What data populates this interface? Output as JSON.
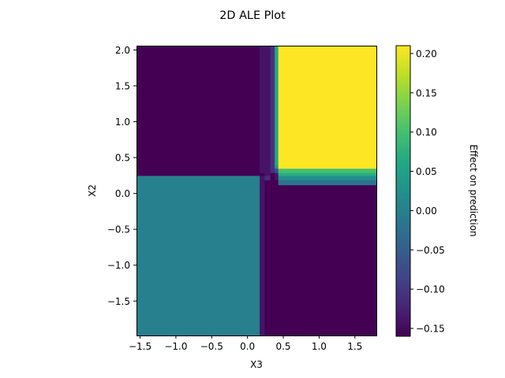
{
  "chart_data": {
    "type": "heatmap",
    "title": "2D ALE Plot",
    "xlabel": "X3",
    "ylabel": "X2",
    "colorbar_label": "Effect on prediction",
    "colormap": "viridis",
    "xlim": [
      -1.55,
      1.8
    ],
    "ylim": [
      -1.98,
      2.06
    ],
    "clim": [
      -0.16,
      0.21
    ],
    "x_ticks": [
      -1.5,
      -1.0,
      -0.5,
      0.0,
      0.5,
      1.0,
      1.5
    ],
    "x_tick_labels": [
      "−1.5",
      "−1.0",
      "−0.5",
      "0.0",
      "0.5",
      "1.0",
      "1.5"
    ],
    "y_ticks": [
      -1.5,
      -1.0,
      -0.5,
      0.0,
      0.5,
      1.0,
      1.5,
      2.0
    ],
    "y_tick_labels": [
      "−1.5",
      "−1.0",
      "−0.5",
      "0.0",
      "0.5",
      "1.0",
      "1.5",
      "2.0"
    ],
    "cbar_ticks": [
      -0.15,
      -0.1,
      -0.05,
      0.0,
      0.05,
      0.1,
      0.15,
      0.2
    ],
    "cbar_tick_labels": [
      "−0.15",
      "−0.10",
      "−0.05",
      "0.00",
      "0.05",
      "0.10",
      "0.15",
      "0.20"
    ],
    "x_edges": [
      -1.55,
      0.17,
      0.24,
      0.32,
      0.38,
      0.43,
      1.8
    ],
    "y_edges": [
      -1.98,
      0.12,
      0.19,
      0.25,
      0.29,
      0.35,
      0.39,
      2.06
    ],
    "values": [
      [
        0.0,
        -0.14,
        -0.16,
        -0.16,
        -0.16,
        -0.16
      ],
      [
        0.0,
        -0.14,
        -0.16,
        -0.16,
        -0.16,
        -0.02
      ],
      [
        0.0,
        -0.14,
        -0.11,
        -0.16,
        -0.14,
        0.02
      ],
      [
        -0.16,
        -0.16,
        -0.14,
        -0.16,
        -0.14,
        0.07
      ],
      [
        -0.16,
        -0.14,
        -0.14,
        -0.11,
        -0.08,
        0.1
      ],
      [
        -0.16,
        -0.14,
        -0.14,
        -0.11,
        0.03,
        0.21
      ],
      [
        -0.16,
        -0.14,
        -0.14,
        -0.11,
        0.06,
        0.21
      ]
    ]
  }
}
